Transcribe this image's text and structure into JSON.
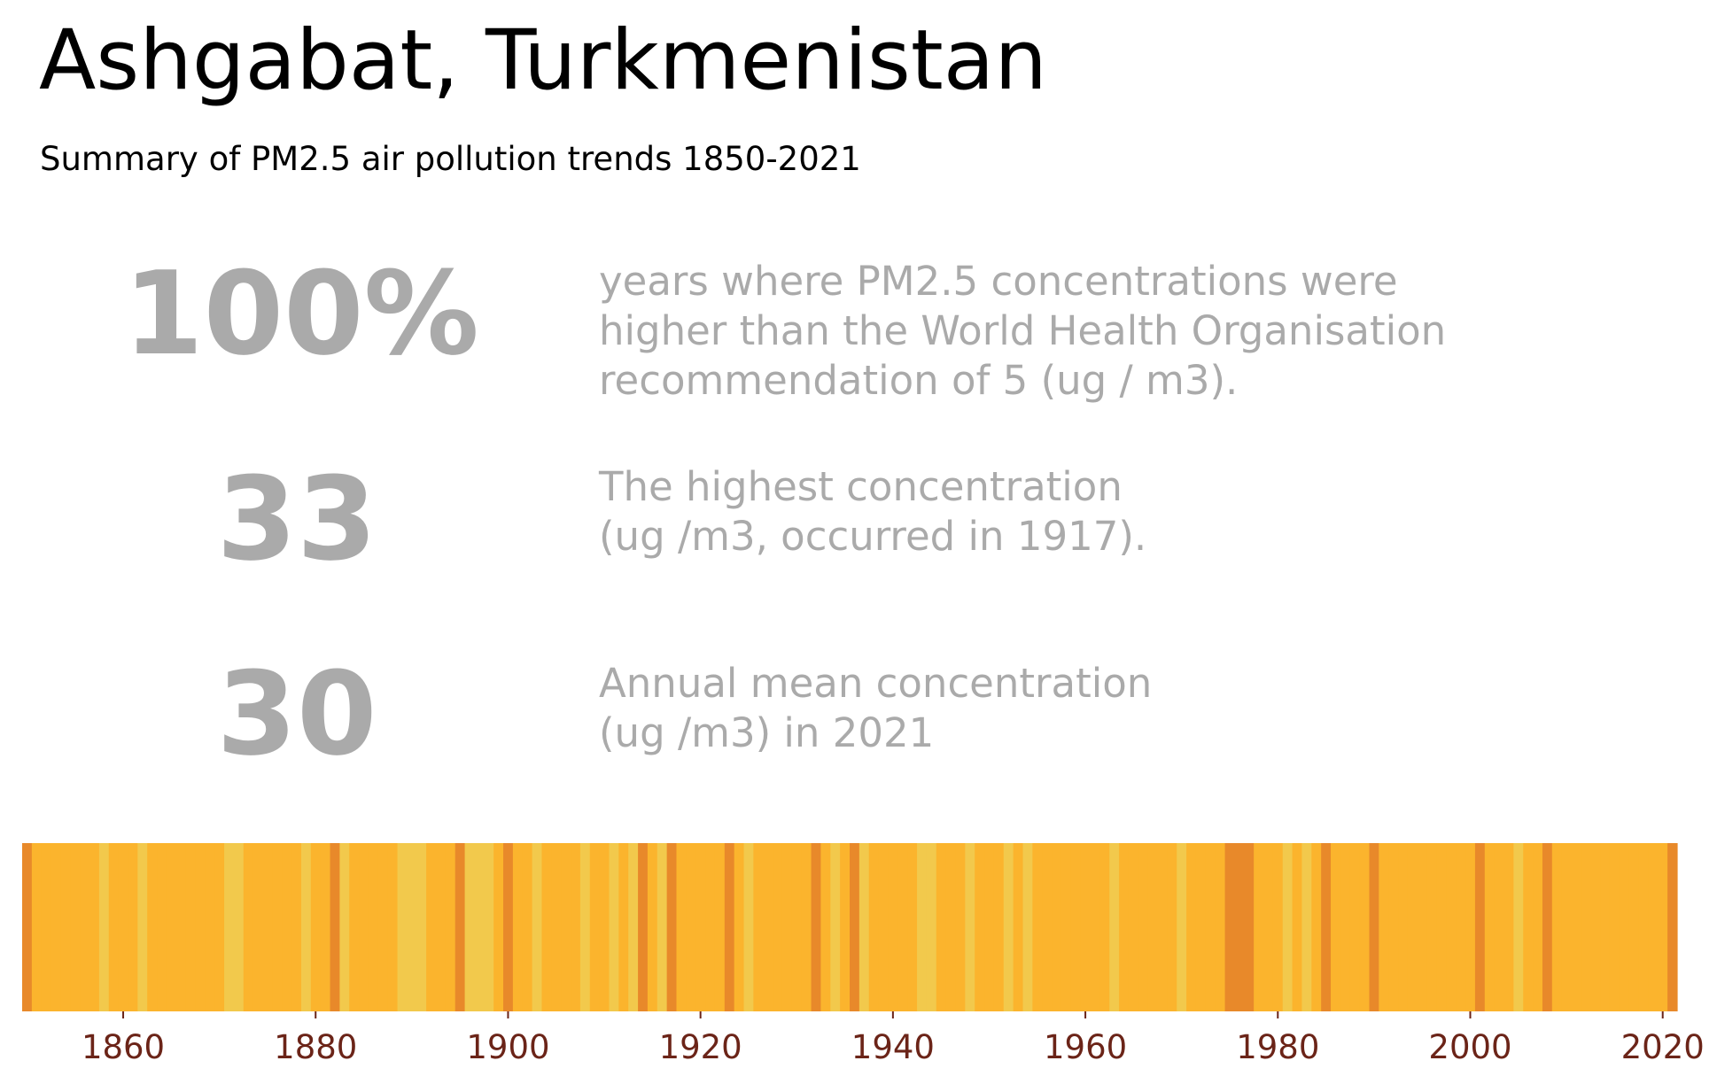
{
  "title": "Ashgabat, Turkmenistan",
  "subtitle": "Summary of PM2.5 air pollution trends 1850-2021",
  "stats": [
    {
      "value": "100%",
      "description": "years where PM2.5 concentrations were\nhigher than the World Health Organisation\nrecommendation of 5 (ug / m3)."
    },
    {
      "value": "33",
      "description": "The highest concentration\n(ug /m3, occurred in 1917)."
    },
    {
      "value": "30",
      "description": "Annual mean concentration\n(ug /m3) in 2021"
    }
  ],
  "colors": {
    "light": "#f2c94c",
    "normal": "#fbb42d",
    "dark": "#e8892a",
    "tick_label": "#6b2418",
    "stat_text": "#aaaaaa"
  },
  "chart_data": {
    "type": "heatmap",
    "x_start": 1850,
    "x_end": 2021,
    "xlim": [
      1850,
      2022
    ],
    "xticks": [
      1860,
      1880,
      1900,
      1920,
      1940,
      1960,
      1980,
      2000,
      2020
    ],
    "legend": "none",
    "grid": false,
    "levels": {
      "light": [
        1858,
        1862,
        1871,
        1872,
        1879,
        1883,
        1889,
        1890,
        1891,
        1896,
        1897,
        1898,
        1903,
        1908,
        1911,
        1913,
        1916,
        1925,
        1934,
        1937,
        1943,
        1944,
        1948,
        1952,
        1954,
        1963,
        1970,
        1981,
        1983,
        2005
      ],
      "dark": [
        1850,
        1882,
        1895,
        1900,
        1914,
        1917,
        1923,
        1932,
        1936,
        1975,
        1976,
        1977,
        1985,
        1990,
        2001,
        2008,
        2021
      ]
    }
  }
}
